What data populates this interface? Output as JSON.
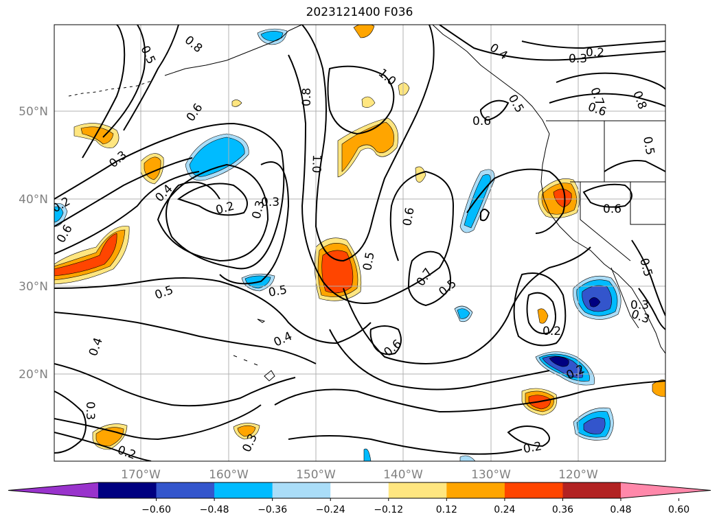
{
  "title": "2023121400 F036",
  "map": {
    "lat_labels": [
      "50°N",
      "40°N",
      "30°N",
      "20°N"
    ],
    "lon_labels": [
      "170°W",
      "160°W",
      "150°W",
      "140°W",
      "130°W",
      "120°W"
    ],
    "contour_labels": [
      "0.5",
      "0.8",
      "0.6",
      "0.3",
      "0.4",
      "0.6",
      "0.2",
      "0.3",
      "0.5",
      "0.5",
      "0.4",
      "0.3",
      "0.2",
      "0.3",
      "0.2",
      "0.8",
      "1.0",
      "1.0",
      "0.5",
      "0.6",
      "0.6",
      "0.7",
      "0.5",
      "0.6",
      "0.4",
      "0.3",
      "0.2",
      "0.7",
      "0.8",
      "0.6",
      "0.5",
      "0.6",
      "0.5",
      "0.5",
      "0.3",
      "0.2",
      "0.2",
      "0.2",
      "0.4",
      "0.3",
      "0.3"
    ],
    "grid": true
  },
  "colorbar": {
    "tick_labels": [
      "−0.60",
      "−0.48",
      "−0.36",
      "−0.24",
      "−0.12",
      "0.12",
      "0.24",
      "0.36",
      "0.48",
      "0.60"
    ],
    "colors": [
      "#9933cc",
      "#000080",
      "#3355cc",
      "#00bbff",
      "#aaddf8",
      "#ffffff",
      "#ffe680",
      "#ffa500",
      "#ff4500",
      "#b22222",
      "#ff88aa"
    ],
    "extend": "both"
  },
  "colors": {
    "grid": "#b0b0b0",
    "contour": "#000000"
  }
}
